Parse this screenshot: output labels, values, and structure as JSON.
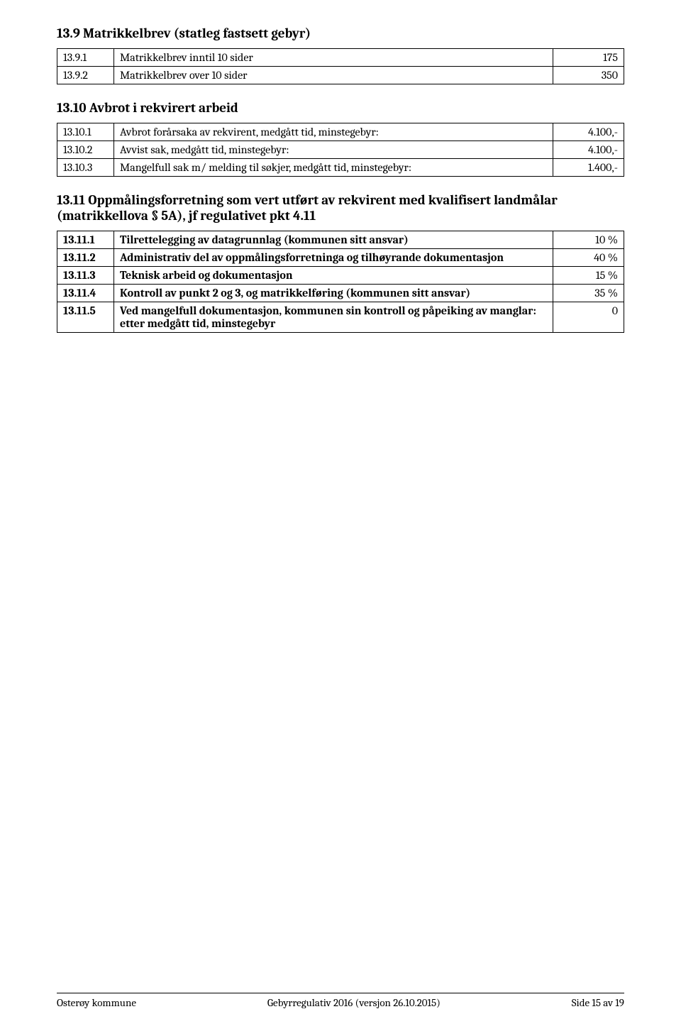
{
  "section_13_9": {
    "title": "13.9 Matrikkelbrev (statleg fastsett gebyr)",
    "rows": [
      {
        "num": "13.9.1",
        "label": "Matrikkelbrev inntil 10 sider",
        "value": "175"
      },
      {
        "num": "13.9.2",
        "label": "Matrikkelbrev over 10 sider",
        "value": "350"
      }
    ]
  },
  "section_13_10": {
    "title": "13.10 Avbrot i rekvirert arbeid",
    "rows": [
      {
        "num": "13.10.1",
        "label": "Avbrot forårsaka av rekvirent,  medgått tid, minstegebyr:",
        "value": "4.100,-"
      },
      {
        "num": "13.10.2",
        "label": "Avvist sak, medgått tid, minstegebyr:",
        "value": "4.100,-"
      },
      {
        "num": "13.10.3",
        "label": "Mangelfull sak m/ melding til søkjer, medgått tid, minstegebyr:",
        "value": "1.400,-"
      }
    ]
  },
  "section_13_11": {
    "title": "13.11 Oppmålingsforretning som vert utført av rekvirent med kvalifisert landmålar (matrikkellova § 5A), jf regulativet pkt 4.11",
    "rows": [
      {
        "num": "13.11.1",
        "label": "Tilrettelegging av datagrunnlag (kommunen sitt ansvar)",
        "value": "10 %",
        "bold": true
      },
      {
        "num": "13.11.2",
        "label": "Administrativ del av oppmålingsforretninga og tilhøyrande dokumentasjon",
        "value": "40 %",
        "bold": true
      },
      {
        "num": "13.11.3",
        "label": "Teknisk arbeid og dokumentasjon",
        "value": "15 %",
        "bold": true
      },
      {
        "num": "13.11.4",
        "label": "Kontroll av punkt 2 og 3, og matrikkelføring (kommunen sitt ansvar)",
        "value": "35 %",
        "bold": true
      },
      {
        "num": "13.11.5",
        "label": "Ved mangelfull dokumentasjon, kommunen sin kontroll og påpeiking av manglar: etter medgått tid, minstegebyr",
        "value": "0",
        "bold": true
      }
    ]
  },
  "footer": {
    "left": "Osterøy kommune",
    "center": "Gebyrregulativ 2016 (versjon 26.10.2015)",
    "right": "Side 15 av 19"
  }
}
